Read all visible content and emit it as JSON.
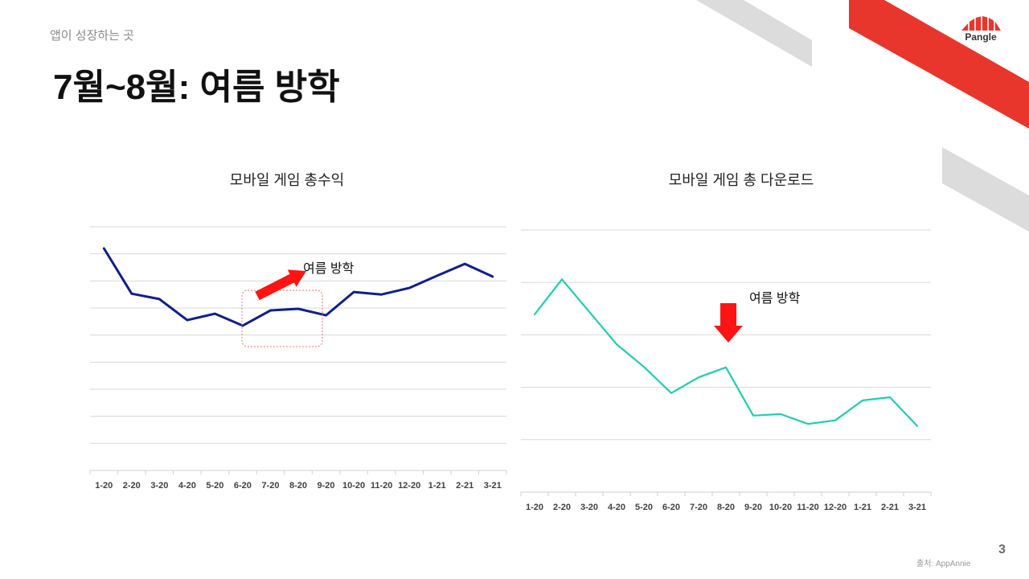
{
  "header": {
    "subtitle": "앱이 성장하는 곳",
    "title": "7월~8월: 여름 방학"
  },
  "logo": {
    "text": "Pangle",
    "icon": "pangle-logo-icon"
  },
  "colors": {
    "brand_red": "#e8362d",
    "stripe_gray": "#dcdcdc",
    "annotation_red": "#ff1414"
  },
  "chart_data": [
    {
      "type": "line",
      "title": "모바일 게임 총수익",
      "xlabel": "",
      "ylabel": "",
      "categories": [
        "1-20",
        "2-20",
        "3-20",
        "4-20",
        "5-20",
        "6-20",
        "7-20",
        "8-20",
        "9-20",
        "10-20",
        "11-20",
        "12-20",
        "1-21",
        "2-21",
        "3-21"
      ],
      "series": [
        {
          "color": "#101f8c",
          "values": [
            8.2,
            6.53,
            6.33,
            5.55,
            5.79,
            5.35,
            5.91,
            5.97,
            5.73,
            6.59,
            6.5,
            6.74,
            7.19,
            7.63,
            7.16
          ]
        }
      ],
      "ylim": [
        0,
        9
      ],
      "grid": true,
      "legend": "none",
      "annotations": [
        {
          "text": "여름 방학",
          "marker": "up-right-arrow",
          "highlight": "dashed-box"
        }
      ]
    },
    {
      "type": "line",
      "title": "모바일 게임 총 다운로드",
      "xlabel": "",
      "ylabel": "",
      "categories": [
        "1-20",
        "2-20",
        "3-20",
        "4-20",
        "5-20",
        "6-20",
        "7-20",
        "8-20",
        "9-20",
        "10-20",
        "11-20",
        "12-20",
        "1-21",
        "2-21",
        "3-21"
      ],
      "series": [
        {
          "color": "#1fcfae",
          "values": [
            3.39,
            4.06,
            3.44,
            2.82,
            2.39,
            1.89,
            2.19,
            2.38,
            1.46,
            1.49,
            1.3,
            1.37,
            1.75,
            1.81,
            1.26
          ]
        }
      ],
      "ylim": [
        0,
        5
      ],
      "grid": true,
      "legend": "none",
      "annotations": [
        {
          "text": "여름 방학",
          "marker": "down-arrow"
        }
      ]
    }
  ],
  "footer": {
    "source": "출처: AppAnnie",
    "page_number": "3"
  }
}
